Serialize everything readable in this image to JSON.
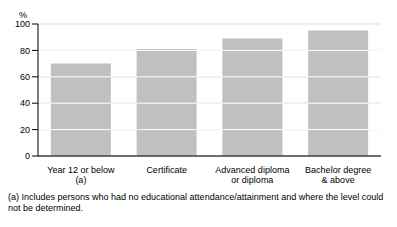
{
  "chart_data": {
    "type": "bar",
    "y_label": "%",
    "categories": [
      "Year 12 or below (a)",
      "Certificate",
      "Advanced diploma or diploma",
      "Bachelor degree & above"
    ],
    "values": [
      70,
      81,
      89,
      95
    ],
    "color": "#c0c0c0",
    "ylim": [
      0,
      100
    ],
    "yticks": [
      0,
      20,
      40,
      60,
      80,
      100
    ],
    "grid": true,
    "annotation": "(a) Includes persons who had no educational attendance/attainment and where the level could not be determined."
  }
}
